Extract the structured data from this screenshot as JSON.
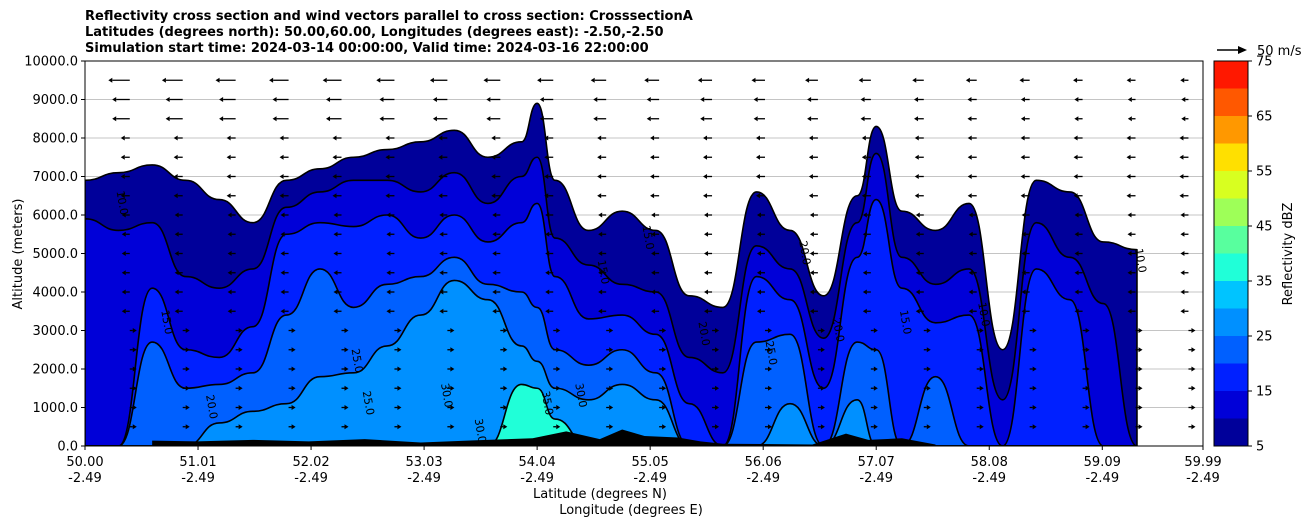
{
  "chart_data": {
    "type": "contour",
    "title_lines": [
      "Reflectivity cross section and wind vectors parallel to cross section: CrosssectionA",
      "Latitudes (degrees north): 50.00,60.00, Longitudes (degrees east): -2.50,-2.50",
      "Simulation start time: 2024-03-14 00:00:00, Valid time: 2024-03-16 22:00:00"
    ],
    "ylabel": "Altitude (meters)",
    "xlabel": "Latitude (degrees N)",
    "xlabel2": "Longitude (degrees E)",
    "ylim": [
      0,
      10000
    ],
    "y_ticks": [
      "0.0",
      "1000.0",
      "2000.0",
      "3000.0",
      "4000.0",
      "5000.0",
      "6000.0",
      "7000.0",
      "8000.0",
      "9000.0",
      "10000.0"
    ],
    "y_tick_values": [
      0,
      1000,
      2000,
      3000,
      4000,
      5000,
      6000,
      7000,
      8000,
      9000,
      10000
    ],
    "xlim": [
      50.0,
      59.99
    ],
    "x_ticks": [
      {
        "lat": "50.00",
        "lon": "-2.49",
        "value": 50.0
      },
      {
        "lat": "51.01",
        "lon": "-2.49",
        "value": 51.01
      },
      {
        "lat": "52.02",
        "lon": "-2.49",
        "value": 52.02
      },
      {
        "lat": "53.03",
        "lon": "-2.49",
        "value": 53.03
      },
      {
        "lat": "54.04",
        "lon": "-2.49",
        "value": 54.04
      },
      {
        "lat": "55.05",
        "lon": "-2.49",
        "value": 55.05
      },
      {
        "lat": "56.06",
        "lon": "-2.49",
        "value": 56.06
      },
      {
        "lat": "57.07",
        "lon": "-2.49",
        "value": 57.07
      },
      {
        "lat": "58.08",
        "lon": "-2.49",
        "value": 58.08
      },
      {
        "lat": "59.09",
        "lon": "-2.49",
        "value": 59.09
      },
      {
        "lat": "59.99",
        "lon": "-2.49",
        "value": 59.99
      }
    ],
    "grid": "horizontal",
    "colorbar": {
      "label": "Reflectivity dBZ",
      "levels": [
        5,
        10,
        15,
        20,
        25,
        30,
        35,
        40,
        45,
        50,
        55,
        60,
        65,
        70,
        75
      ],
      "tick_labels": [
        "5",
        "15",
        "25",
        "35",
        "45",
        "55",
        "65",
        "75"
      ],
      "colors": [
        "#00009a",
        "#0000d8",
        "#0020ff",
        "#0060ff",
        "#0090ff",
        "#00c4ff",
        "#20ffd8",
        "#58ff9e",
        "#9eff58",
        "#d8ff20",
        "#ffe000",
        "#ff9800",
        "#ff5800",
        "#ff1800",
        "#a80000"
      ]
    },
    "wind_key_label": "50 m/s",
    "contour_labels": [
      "10.0",
      "15.0",
      "20.0",
      "25.0",
      "30.0",
      "35.0"
    ],
    "profile": {
      "lat": [
        50.0,
        50.3,
        50.6,
        50.9,
        51.2,
        51.5,
        51.8,
        52.1,
        52.4,
        52.7,
        53.0,
        53.3,
        53.6,
        53.9,
        54.04,
        54.2,
        54.5,
        54.8,
        55.1,
        55.4,
        55.7,
        56.0,
        56.3,
        56.6,
        56.9,
        57.07,
        57.3,
        57.6,
        57.9,
        58.2,
        58.5,
        58.8,
        59.1,
        59.4
      ],
      "top_10dBZ": [
        6900,
        7100,
        7300,
        6900,
        6400,
        5800,
        6900,
        7200,
        7500,
        7700,
        7900,
        8200,
        7500,
        7900,
        8900,
        6900,
        5600,
        6100,
        5600,
        3900,
        3600,
        6600,
        5600,
        3900,
        6500,
        8300,
        6100,
        5600,
        6300,
        2500,
        6900,
        6600,
        5300,
        5100
      ],
      "top_15dBZ": [
        5900,
        5600,
        5800,
        4400,
        4100,
        4600,
        6200,
        6600,
        6900,
        6900,
        6600,
        7100,
        6300,
        7000,
        7500,
        5400,
        4700,
        4200,
        4000,
        2300,
        1900,
        5200,
        4600,
        2800,
        5800,
        7600,
        4900,
        4200,
        4600,
        1200,
        5800,
        4900,
        3700,
        0
      ],
      "top_20dBZ": [
        0,
        0,
        4100,
        2500,
        2300,
        3100,
        5500,
        5800,
        5700,
        6000,
        5400,
        6000,
        5300,
        5800,
        6300,
        4400,
        3300,
        3400,
        2900,
        1100,
        0,
        4400,
        3800,
        1500,
        4900,
        6400,
        4100,
        3200,
        3400,
        0,
        4600,
        3800,
        0,
        0
      ],
      "top_25dBZ": [
        0,
        0,
        2700,
        1500,
        1600,
        1900,
        3400,
        4600,
        3600,
        4200,
        4400,
        4900,
        4200,
        4000,
        3600,
        2500,
        2100,
        2500,
        1900,
        0,
        0,
        2700,
        2900,
        0,
        2700,
        2500,
        0,
        1800,
        0,
        0,
        0,
        0,
        0,
        0
      ],
      "top_30dBZ": [
        0,
        0,
        0,
        0,
        600,
        900,
        1100,
        1800,
        1900,
        2600,
        3400,
        4300,
        3800,
        2600,
        2200,
        1500,
        1200,
        1600,
        1200,
        0,
        0,
        0,
        1100,
        0,
        1200,
        0,
        0,
        0,
        0,
        0,
        0,
        0,
        0,
        0
      ],
      "top_35dBZ": [
        0,
        0,
        0,
        0,
        0,
        0,
        0,
        0,
        0,
        0,
        0,
        0,
        0,
        1600,
        1500,
        700,
        0,
        0,
        0,
        0,
        0,
        0,
        0,
        0,
        0,
        0,
        0,
        0,
        0,
        0,
        0,
        0,
        0,
        0
      ]
    }
  }
}
